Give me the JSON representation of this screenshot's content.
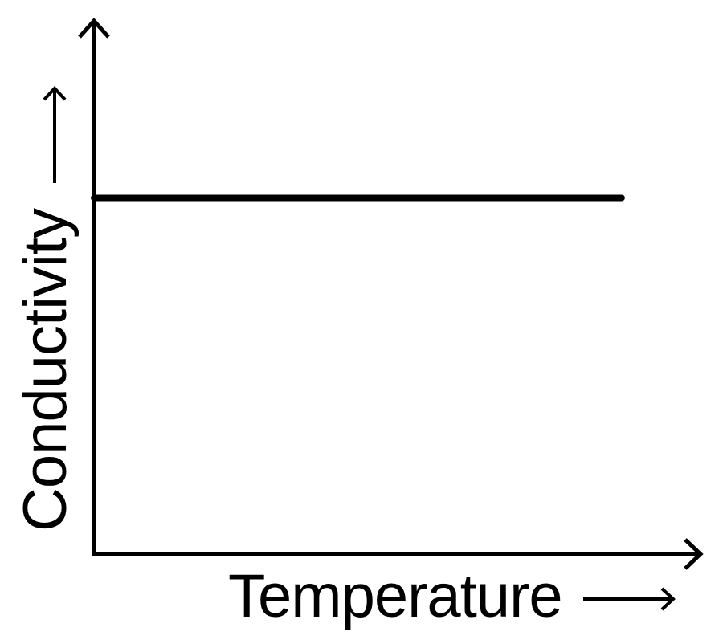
{
  "chart_data": {
    "type": "line",
    "title": "",
    "xlabel": "Temperature",
    "ylabel": "Conductivity",
    "xlim": [
      0,
      1
    ],
    "ylim": [
      0,
      1
    ],
    "grid": false,
    "series": [
      {
        "x": [
          0,
          0.87
        ],
        "y": [
          0.67,
          0.67
        ]
      }
    ],
    "line_color": "#000000"
  }
}
